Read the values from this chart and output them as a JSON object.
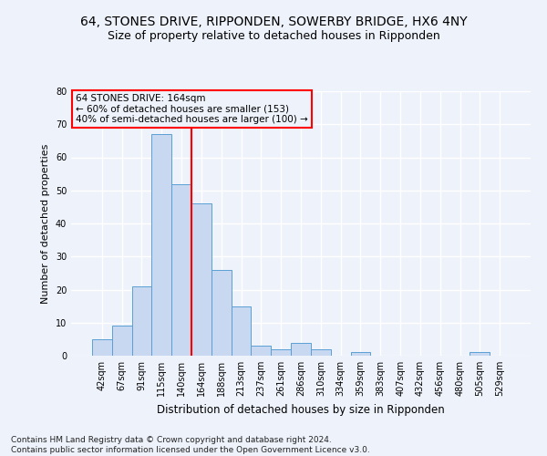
{
  "title1": "64, STONES DRIVE, RIPPONDEN, SOWERBY BRIDGE, HX6 4NY",
  "title2": "Size of property relative to detached houses in Ripponden",
  "xlabel": "Distribution of detached houses by size in Ripponden",
  "ylabel": "Number of detached properties",
  "categories": [
    "42sqm",
    "67sqm",
    "91sqm",
    "115sqm",
    "140sqm",
    "164sqm",
    "188sqm",
    "213sqm",
    "237sqm",
    "261sqm",
    "286sqm",
    "310sqm",
    "334sqm",
    "359sqm",
    "383sqm",
    "407sqm",
    "432sqm",
    "456sqm",
    "480sqm",
    "505sqm",
    "529sqm"
  ],
  "bar_heights": [
    5,
    9,
    21,
    67,
    52,
    46,
    26,
    15,
    3,
    2,
    4,
    2,
    0,
    1,
    0,
    0,
    0,
    0,
    0,
    1,
    0
  ],
  "bar_color": "#c8d8f0",
  "bar_edge_color": "#5a9fd4",
  "vline_color": "red",
  "annotation_text": "64 STONES DRIVE: 164sqm\n← 60% of detached houses are smaller (153)\n40% of semi-detached houses are larger (100) →",
  "annotation_box_color": "red",
  "ylim": [
    0,
    80
  ],
  "yticks": [
    0,
    10,
    20,
    30,
    40,
    50,
    60,
    70,
    80
  ],
  "footnote": "Contains HM Land Registry data © Crown copyright and database right 2024.\nContains public sector information licensed under the Open Government Licence v3.0.",
  "bg_color": "#eef2fb",
  "grid_color": "#ffffff",
  "title1_fontsize": 10,
  "title2_fontsize": 9,
  "xlabel_fontsize": 8.5,
  "ylabel_fontsize": 8,
  "tick_fontsize": 7,
  "footnote_fontsize": 6.5,
  "annotation_fontsize": 7.5
}
